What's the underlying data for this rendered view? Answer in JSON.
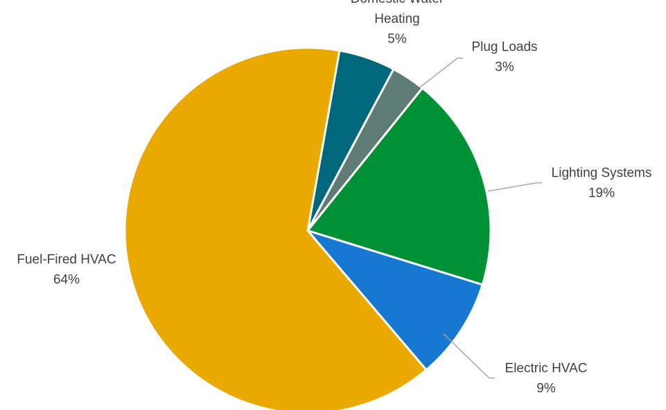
{
  "chart_data": {
    "type": "pie",
    "title": "",
    "slices": [
      {
        "name": "Domestic Water Heating",
        "label_lines": [
          "Domestic Water",
          "Heating"
        ],
        "value": 5,
        "value_label": "5%",
        "color": "#00687A"
      },
      {
        "name": "Plug Loads",
        "label_lines": [
          "Plug Loads"
        ],
        "value": 3,
        "value_label": "3%",
        "color": "#5E7B74"
      },
      {
        "name": "Lighting Systems",
        "label_lines": [
          "Lighting Systems"
        ],
        "value": 19,
        "value_label": "19%",
        "color": "#009035"
      },
      {
        "name": "Electric HVAC",
        "label_lines": [
          "Electric HVAC"
        ],
        "value": 9,
        "value_label": "9%",
        "color": "#1778D2"
      },
      {
        "name": "Fuel-Fired HVAC",
        "label_lines": [
          "Fuel-Fired HVAC"
        ],
        "value": 64,
        "value_label": "64%",
        "color": "#E9A900"
      }
    ],
    "start_angle_deg": 10,
    "legend": "none"
  }
}
